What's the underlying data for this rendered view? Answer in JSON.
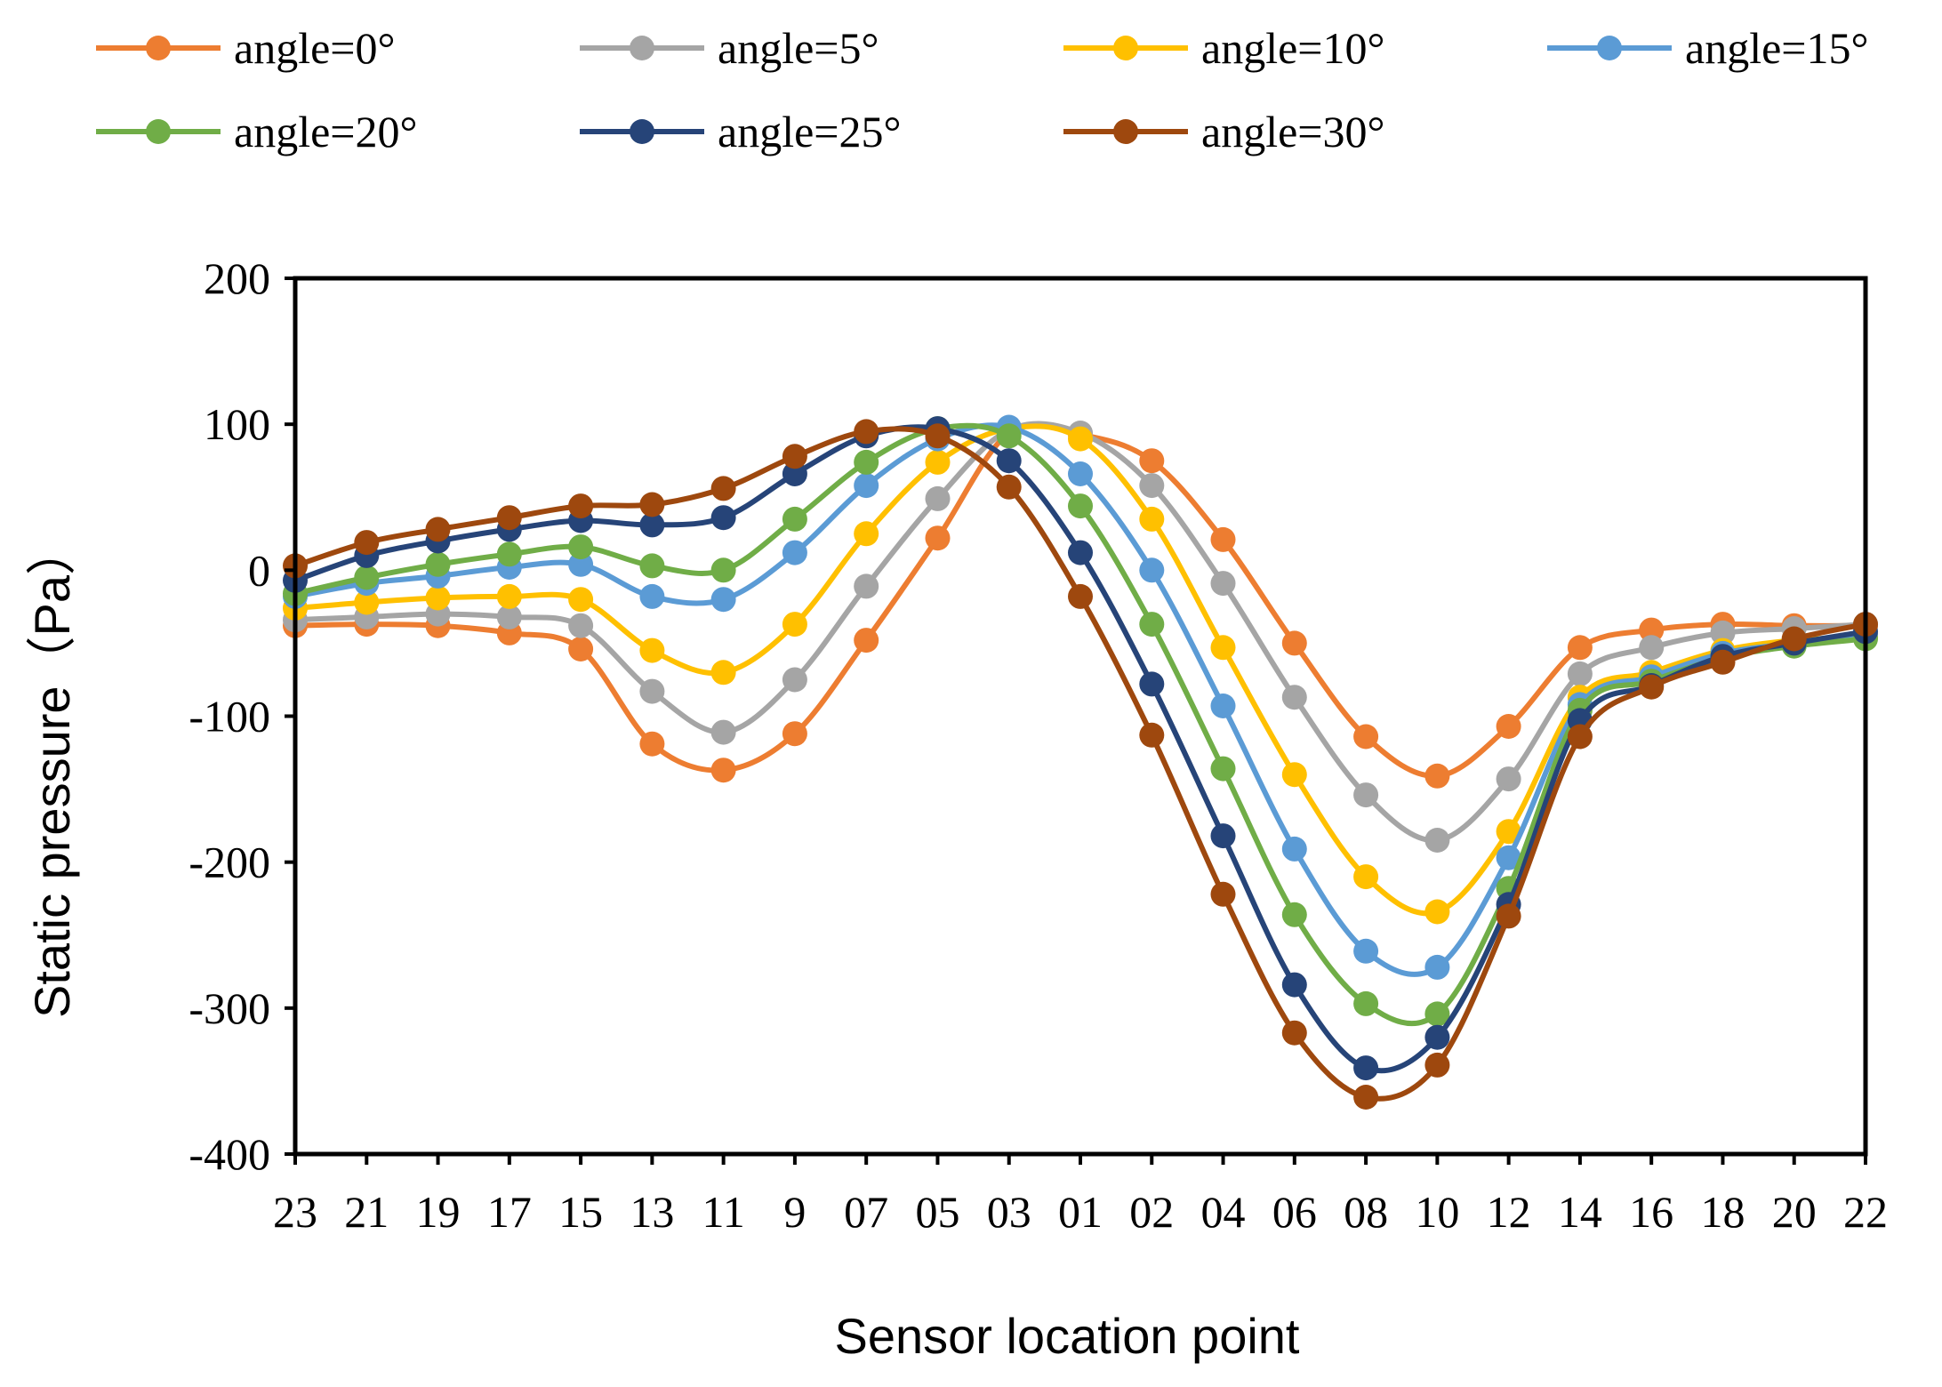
{
  "chart_data": {
    "type": "line",
    "title": "",
    "xlabel": "Sensor location point",
    "ylabel": "Static pressure（Pa）",
    "ylim": [
      -400,
      200
    ],
    "yticks": [
      200,
      100,
      0,
      -100,
      -200,
      -300,
      -400
    ],
    "grid": false,
    "legend_position": "top",
    "categories": [
      "23",
      "21",
      "19",
      "17",
      "15",
      "13",
      "11",
      "9",
      "07",
      "05",
      "03",
      "01",
      "02",
      "04",
      "06",
      "08",
      "10",
      "12",
      "14",
      "16",
      "18",
      "20",
      "22"
    ],
    "series": [
      {
        "name": "angle=0°",
        "color": "#ED7D31",
        "values": [
          -38,
          -37,
          -38,
          -43,
          -54,
          -119,
          -137,
          -112,
          -48,
          22,
          94,
          93,
          75,
          21,
          -50,
          -114,
          -141,
          -107,
          -53,
          -41,
          -37,
          -38,
          -38
        ]
      },
      {
        "name": "angle=5°",
        "color": "#A5A5A5",
        "values": [
          -34,
          -32,
          -30,
          -32,
          -38,
          -83,
          -111,
          -75,
          -11,
          49,
          96,
          94,
          58,
          -9,
          -87,
          -154,
          -185,
          -143,
          -71,
          -53,
          -43,
          -40,
          -37
        ]
      },
      {
        "name": "angle=10°",
        "color": "#FFC000",
        "values": [
          -26,
          -22,
          -19,
          -18,
          -20,
          -55,
          -70,
          -37,
          25,
          74,
          97,
          90,
          35,
          -53,
          -140,
          -210,
          -234,
          -179,
          -87,
          -70,
          -55,
          -48,
          -46
        ]
      },
      {
        "name": "angle=15°",
        "color": "#5B9BD5",
        "values": [
          -18,
          -9,
          -4,
          2,
          4,
          -18,
          -20,
          12,
          58,
          90,
          98,
          66,
          0,
          -93,
          -191,
          -261,
          -272,
          -197,
          -92,
          -73,
          -57,
          -50,
          -44
        ]
      },
      {
        "name": "angle=20°",
        "color": "#70AD47",
        "values": [
          -16,
          -5,
          4,
          11,
          16,
          3,
          0,
          35,
          74,
          97,
          92,
          44,
          -37,
          -136,
          -236,
          -297,
          -304,
          -218,
          -96,
          -76,
          -60,
          -52,
          -47
        ]
      },
      {
        "name": "angle=25°",
        "color": "#264478",
        "values": [
          -7,
          10,
          20,
          28,
          34,
          31,
          36,
          66,
          92,
          97,
          75,
          12,
          -78,
          -182,
          -284,
          -341,
          -320,
          -229,
          -103,
          -79,
          -59,
          -50,
          -42
        ]
      },
      {
        "name": "angle=30°",
        "color": "#9E480E",
        "values": [
          3,
          19,
          28,
          36,
          44,
          45,
          56,
          78,
          95,
          92,
          57,
          -18,
          -113,
          -222,
          -317,
          -361,
          -339,
          -237,
          -114,
          -80,
          -63,
          -47,
          -37
        ]
      }
    ]
  }
}
